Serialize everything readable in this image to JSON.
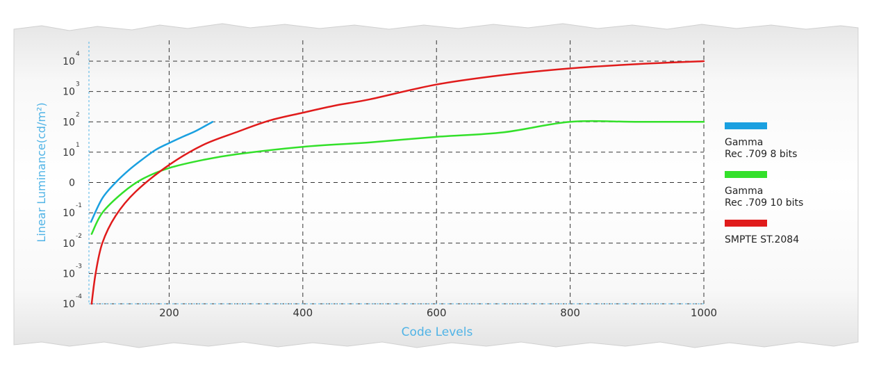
{
  "chart_data": {
    "type": "line",
    "xlabel": "Code Levels",
    "ylabel": "Linear Luminance(cd/m²)",
    "xlim": [
      80,
      1000
    ],
    "x_ticks": [
      200,
      400,
      600,
      800,
      1000
    ],
    "y_ticks": [
      {
        "value": 0.0001,
        "base": "10",
        "exp": "-4"
      },
      {
        "value": 0.001,
        "base": "10",
        "exp": "-3"
      },
      {
        "value": 0.01,
        "base": "10",
        "exp": "-2"
      },
      {
        "value": 0.1,
        "base": "10",
        "exp": "-1"
      },
      {
        "value": 1,
        "base": "0",
        "exp": ""
      },
      {
        "value": 10,
        "base": "10",
        "exp": "1"
      },
      {
        "value": 100,
        "base": "10",
        "exp": "2"
      },
      {
        "value": 1000,
        "base": "10",
        "exp": "3"
      },
      {
        "value": 10000,
        "base": "10",
        "exp": "4"
      }
    ],
    "grid": true,
    "legend_position": "right",
    "series": [
      {
        "name": "Gamma\nRec .709 8 bits",
        "color": "#1aa0e0",
        "x": [
          83,
          100,
          120,
          140,
          160,
          180,
          200,
          220,
          240,
          265
        ],
        "y": [
          0.05,
          0.3,
          1.0,
          2.6,
          5.8,
          12,
          20,
          32,
          50,
          100
        ]
      },
      {
        "name": "Gamma\nRec .709 10 bits",
        "color": "#33e02a",
        "x": [
          84,
          100,
          130,
          160,
          200,
          250,
          300,
          400,
          500,
          600,
          700,
          800,
          900,
          1000
        ],
        "y": [
          0.02,
          0.1,
          0.45,
          1.3,
          3.0,
          5.5,
          8.5,
          15,
          21,
          32,
          45,
          100,
          100,
          100
        ]
      },
      {
        "name": "SMPTE ST.2084",
        "color": "#e01b1b",
        "x": [
          84,
          90,
          100,
          120,
          150,
          200,
          250,
          300,
          350,
          400,
          450,
          500,
          600,
          700,
          800,
          900,
          1000
        ],
        "y": [
          0.0001,
          0.001,
          0.01,
          0.08,
          0.5,
          3.8,
          17,
          45,
          110,
          200,
          350,
          550,
          1700,
          3500,
          5800,
          8000,
          10000
        ]
      }
    ]
  }
}
